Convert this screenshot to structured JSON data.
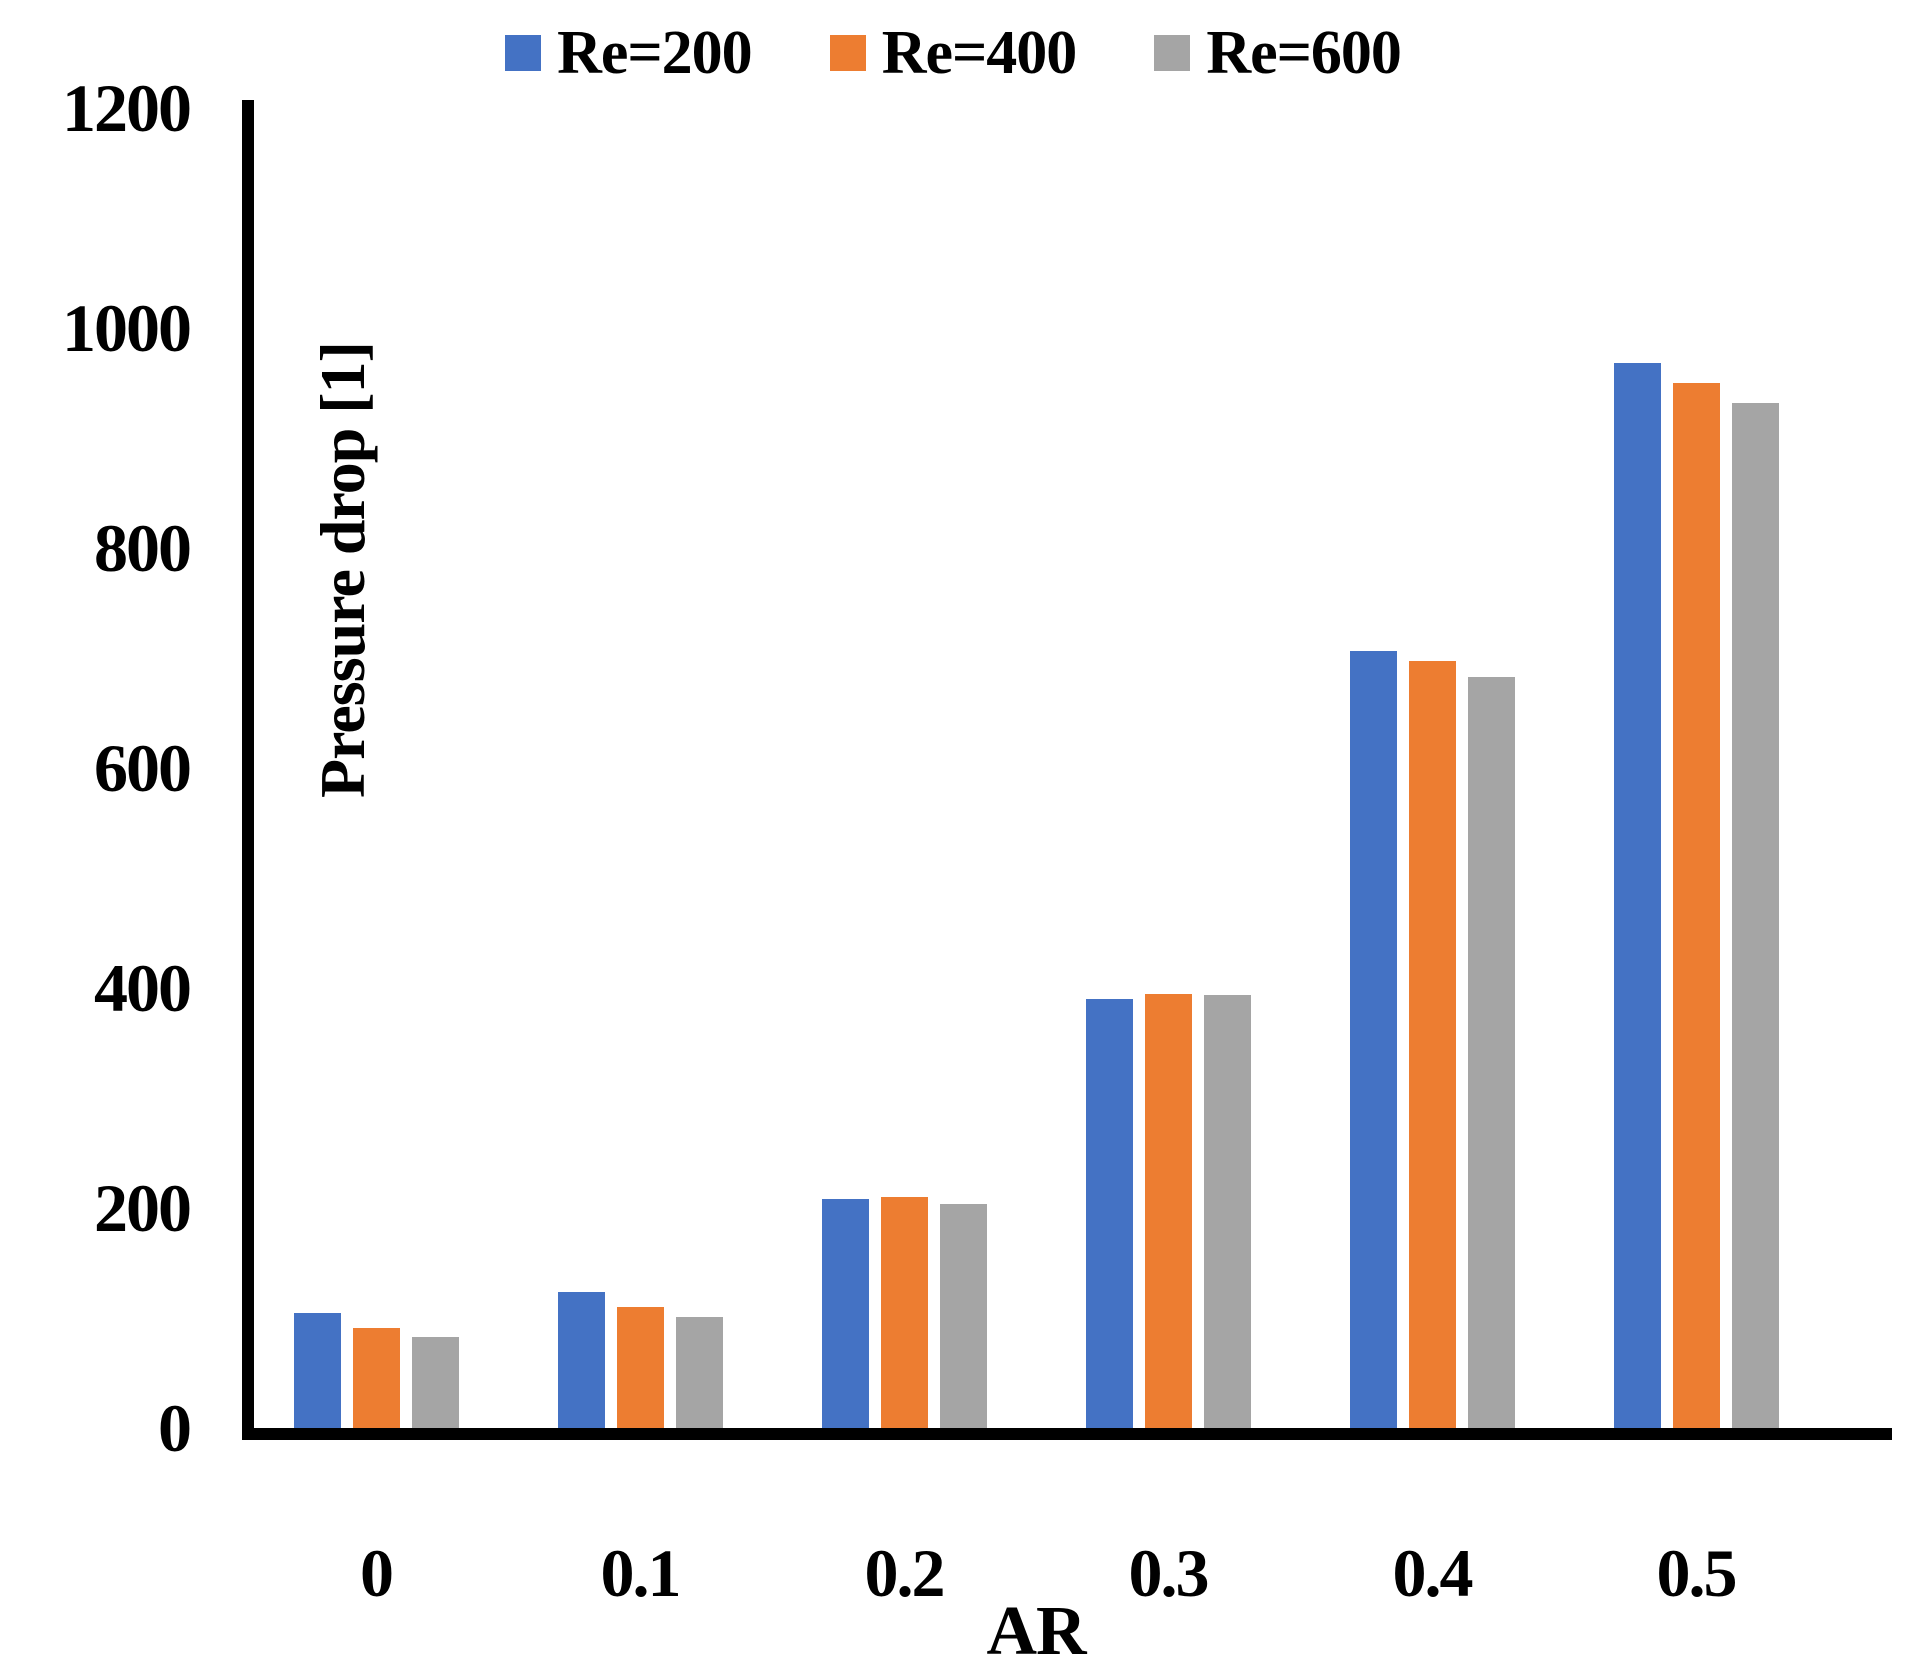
{
  "chart_data": {
    "type": "bar",
    "title": "",
    "xlabel": "AR",
    "ylabel": "Pressure drop [1]",
    "categories": [
      "0",
      "0.1",
      "0.2",
      "0.3",
      "0.4",
      "0.5"
    ],
    "series": [
      {
        "name": "Re=200",
        "color": "#4472C4",
        "values": [
          105,
          124,
          208,
          390,
          706,
          968
        ]
      },
      {
        "name": "Re=400",
        "color": "#ED7D31",
        "values": [
          91,
          110,
          210,
          395,
          697,
          950
        ]
      },
      {
        "name": "Re=600",
        "color": "#A5A5A5",
        "values": [
          83,
          101,
          204,
          394,
          683,
          932
        ]
      }
    ],
    "ylim": [
      0,
      1200
    ],
    "yticks": [
      0,
      200,
      400,
      600,
      800,
      1000,
      1200
    ],
    "grid": false,
    "legend_position": "top",
    "axis_color": "#000000",
    "text_color": "#000000",
    "background": "#FFFFFF"
  }
}
